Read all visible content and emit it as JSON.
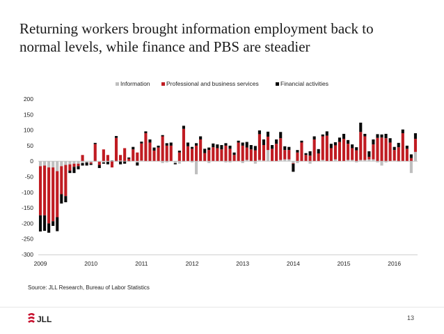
{
  "title_lines": [
    "Returning workers brought information employment back to",
    "normal levels, while finance and PBS are steadier"
  ],
  "source": "Source: JLL Research, Bureau of Labor Statistics",
  "page_number": "13",
  "logo_text": "JLL",
  "colors": {
    "information": "#bfbfbf",
    "pbs": "#c01c22",
    "finance": "#0a0a0a",
    "logo_red": "#c8102e"
  },
  "chart_data": {
    "type": "bar",
    "stacked": true,
    "legend_position": "top",
    "grid": false,
    "ylim": [
      -300,
      200
    ],
    "yticks": [
      200,
      150,
      100,
      50,
      0,
      -50,
      -100,
      -150,
      -200,
      -250,
      -300
    ],
    "year_labels": [
      "2009",
      "2010",
      "2011",
      "2012",
      "2013",
      "2014",
      "2015",
      "2016"
    ],
    "months": 90,
    "series": [
      {
        "name": "Information",
        "values": [
          -16,
          -14,
          -20,
          -20,
          -32,
          -16,
          -12,
          -10,
          -8,
          -8,
          -6,
          -4,
          -4,
          -2,
          -2,
          -4,
          -2,
          0,
          -2,
          2,
          0,
          -2,
          0,
          -4,
          2,
          0,
          0,
          0,
          0,
          -6,
          -4,
          0,
          -6,
          -8,
          -2,
          0,
          -4,
          -42,
          0,
          0,
          -6,
          0,
          0,
          0,
          -4,
          -4,
          0,
          0,
          -6,
          4,
          0,
          -8,
          4,
          2,
          36,
          0,
          0,
          4,
          6,
          6,
          -6,
          -6,
          0,
          0,
          -8,
          0,
          0,
          4,
          0,
          0,
          6,
          0,
          0,
          4,
          4,
          -4,
          4,
          4,
          6,
          6,
          -4,
          -14,
          -4,
          0,
          2,
          -2,
          0,
          0,
          -38,
          30
        ]
      },
      {
        "name": "Professional and business services",
        "values": [
          -158,
          -160,
          -180,
          -173,
          -148,
          -90,
          -100,
          -20,
          -10,
          -8,
          20,
          0,
          -4,
          55,
          -10,
          38,
          20,
          -20,
          75,
          18,
          42,
          8,
          38,
          28,
          55,
          90,
          60,
          34,
          44,
          80,
          50,
          50,
          0,
          28,
          104,
          48,
          40,
          50,
          70,
          26,
          36,
          45,
          42,
          38,
          50,
          40,
          20,
          60,
          50,
          40,
          38,
          35,
          83,
          50,
          43,
          40,
          56,
          70,
          30,
          30,
          -2,
          28,
          60,
          20,
          18,
          70,
          25,
          76,
          82,
          42,
          45,
          62,
          72,
          52,
          38,
          35,
          90,
          76,
          8,
          48,
          75,
          76,
          74,
          60,
          34,
          45,
          90,
          40,
          10,
          42
        ]
      },
      {
        "name": "Financial activities",
        "values": [
          -52,
          -50,
          -30,
          -15,
          -45,
          -30,
          -20,
          -8,
          -20,
          -10,
          -8,
          -10,
          -4,
          4,
          -10,
          -4,
          -8,
          2,
          6,
          -10,
          -8,
          4,
          8,
          -10,
          6,
          6,
          10,
          10,
          6,
          4,
          8,
          10,
          -4,
          6,
          10,
          12,
          6,
          8,
          10,
          14,
          8,
          12,
          12,
          14,
          8,
          10,
          8,
          6,
          10,
          18,
          14,
          14,
          12,
          18,
          16,
          12,
          14,
          20,
          12,
          10,
          -26,
          8,
          6,
          6,
          14,
          10,
          14,
          6,
          14,
          14,
          10,
          14,
          16,
          12,
          12,
          10,
          30,
          8,
          18,
          16,
          12,
          10,
          14,
          14,
          10,
          14,
          12,
          10,
          12,
          18
        ]
      }
    ]
  }
}
